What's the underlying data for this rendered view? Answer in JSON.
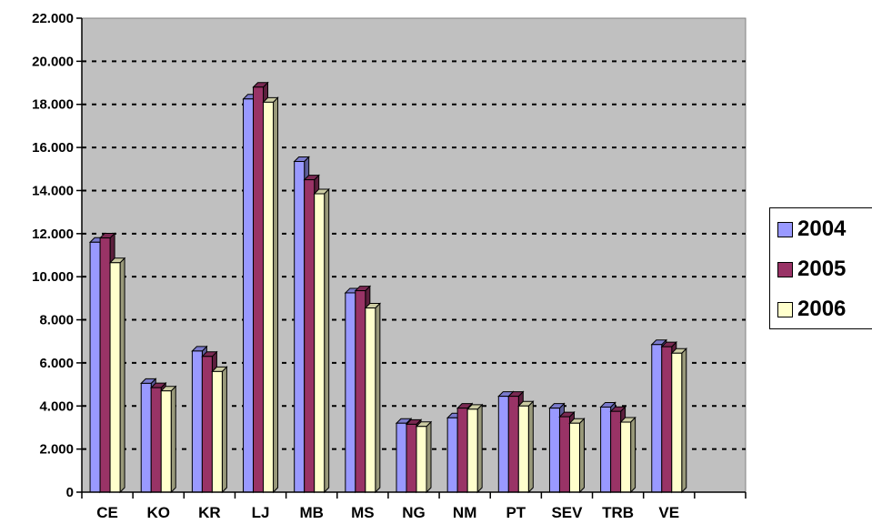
{
  "chart_data": {
    "type": "bar",
    "categories": [
      "CE",
      "KO",
      "KR",
      "LJ",
      "MB",
      "MS",
      "NG",
      "NM",
      "PT",
      "SEV",
      "TRB",
      "VE"
    ],
    "series": [
      {
        "name": "2004",
        "color": "#9999ff",
        "values": [
          11600,
          5050,
          6550,
          18250,
          15350,
          9250,
          3200,
          3450,
          4450,
          3900,
          3950,
          6850
        ]
      },
      {
        "name": "2005",
        "color": "#993366",
        "values": [
          11800,
          4850,
          6300,
          18800,
          14500,
          9350,
          3150,
          3900,
          4450,
          3500,
          3750,
          6750
        ]
      },
      {
        "name": "2006",
        "color": "#ffffcc",
        "values": [
          10650,
          4700,
          5600,
          18100,
          13850,
          8550,
          3050,
          3850,
          4000,
          3200,
          3250,
          6450
        ]
      }
    ],
    "y_ticks": [
      "0",
      "2.000",
      "4.000",
      "6.000",
      "8.000",
      "10.000",
      "12.000",
      "14.000",
      "16.000",
      "18.000",
      "20.000",
      "22.000"
    ],
    "ylim": [
      0,
      22000
    ],
    "grid": "dashed horizontal",
    "legend": "right",
    "plot_background": "#c0c0c0"
  }
}
